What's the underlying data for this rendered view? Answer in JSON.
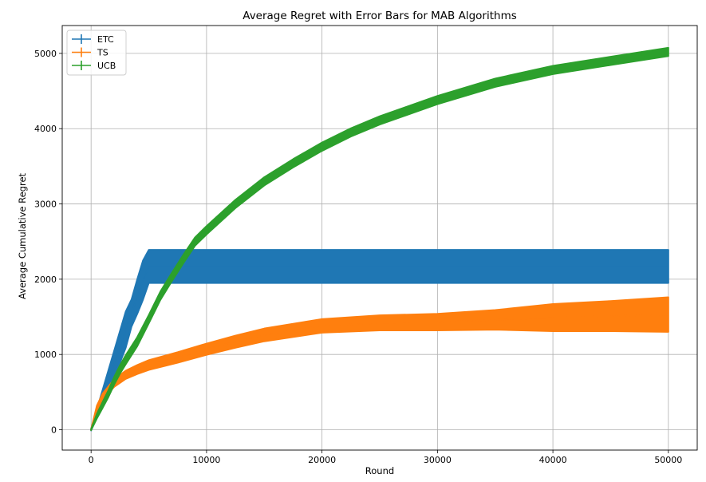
{
  "chart_data": {
    "type": "line",
    "title": "Average Regret with Error Bars for MAB Algorithms",
    "xlabel": "Round",
    "ylabel": "Average Cumulative Regret",
    "xlim": [
      -2500,
      52500
    ],
    "ylim": [
      -270,
      5370
    ],
    "xticks": [
      0,
      10000,
      20000,
      30000,
      40000,
      50000
    ],
    "xtick_labels": [
      "0",
      "10000",
      "20000",
      "30000",
      "40000",
      "50000"
    ],
    "yticks": [
      0,
      1000,
      2000,
      3000,
      4000,
      5000
    ],
    "ytick_labels": [
      "0",
      "1000",
      "2000",
      "3000",
      "4000",
      "5000"
    ],
    "grid": true,
    "legend_position": "top-left",
    "series": [
      {
        "name": "ETC",
        "color": "#1f77b4",
        "x": [
          0,
          500,
          1000,
          1500,
          2000,
          2500,
          3000,
          3500,
          4000,
          4500,
          5000,
          7500,
          10000,
          20000,
          30000,
          40000,
          50000
        ],
        "mean": [
          0,
          220,
          440,
          660,
          880,
          1100,
          1330,
          1550,
          1770,
          1990,
          2170,
          2170,
          2170,
          2170,
          2170,
          2170,
          2170
        ],
        "error": [
          10,
          50,
          90,
          130,
          170,
          210,
          240,
          180,
          230,
          260,
          220,
          220,
          220,
          220,
          220,
          220,
          220
        ]
      },
      {
        "name": "TS",
        "color": "#ff7f0e",
        "x": [
          0,
          500,
          1000,
          2000,
          3000,
          4000,
          5000,
          7500,
          10000,
          12500,
          15000,
          20000,
          25000,
          30000,
          35000,
          40000,
          45000,
          50000
        ],
        "mean": [
          0,
          290,
          440,
          620,
          730,
          800,
          860,
          960,
          1070,
          1170,
          1260,
          1380,
          1420,
          1430,
          1460,
          1490,
          1510,
          1530
        ],
        "error": [
          5,
          30,
          40,
          50,
          55,
          60,
          65,
          70,
          75,
          80,
          85,
          90,
          100,
          110,
          130,
          180,
          200,
          230
        ]
      },
      {
        "name": "UCB",
        "color": "#2ca02c",
        "x": [
          0,
          500,
          1000,
          1500,
          2000,
          2500,
          3000,
          4000,
          5000,
          6000,
          7000,
          8000,
          9000,
          10000,
          12500,
          15000,
          17500,
          20000,
          22500,
          25000,
          30000,
          35000,
          40000,
          45000,
          50000
        ],
        "mean": [
          0,
          180,
          330,
          480,
          650,
          800,
          930,
          1170,
          1470,
          1780,
          2030,
          2270,
          2500,
          2650,
          3000,
          3300,
          3540,
          3760,
          3950,
          4110,
          4380,
          4610,
          4780,
          4900,
          5020
        ],
        "error": [
          5,
          30,
          40,
          45,
          50,
          55,
          60,
          60,
          55,
          55,
          55,
          55,
          55,
          55,
          55,
          55,
          55,
          55,
          55,
          55,
          55,
          55,
          55,
          55,
          55
        ]
      }
    ]
  }
}
